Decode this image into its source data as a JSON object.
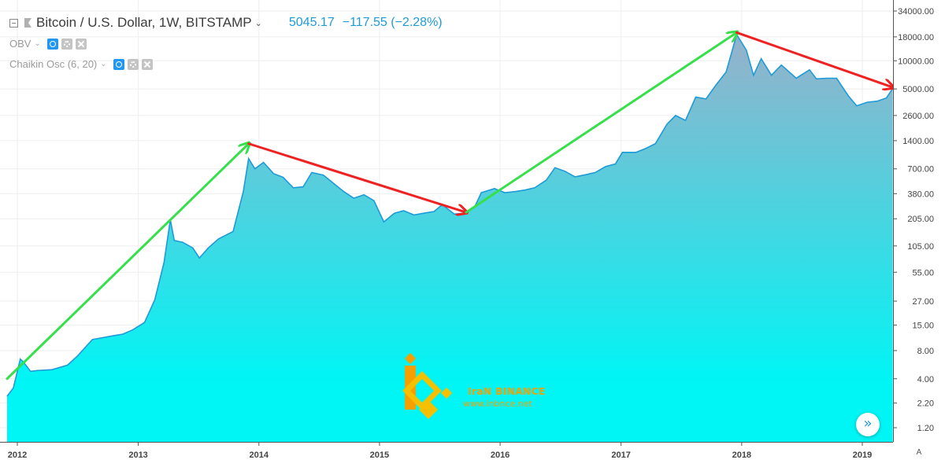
{
  "header": {
    "title": "Bitcoin / U.S. Dollar, 1W, BITSTAMP",
    "price": "5045.17",
    "change": "−117.55 (−2.28%)"
  },
  "indicators": [
    {
      "label": "OBV"
    },
    {
      "label": "Chaikin Osc (6, 20)"
    }
  ],
  "auto_label": "A",
  "watermark": {
    "brand": "IraN BINANCE",
    "url": "www.inbnce.net"
  },
  "colors": {
    "line": "#1e9bd7",
    "fill_top": "#8fb4cc",
    "fill_bottom": "#00f5f5",
    "up_arrow": "#35e04a",
    "down_arrow": "#ee2222",
    "brand": "#f5a000"
  },
  "chart_data": {
    "type": "area",
    "y_scale": "log",
    "y_ticks": [
      34000,
      18000,
      10000,
      5000,
      2600,
      1400,
      700,
      380,
      205,
      105,
      55,
      27,
      15,
      8,
      4,
      2.2,
      1.2
    ],
    "y_tick_labels": [
      "34000.00",
      "18000.00",
      "10000.00",
      "5000.00",
      "2600.00",
      "1400.00",
      "700.00",
      "380.00",
      "205.00",
      "105.00",
      "55.00",
      "27.00",
      "15.00",
      "8.00",
      "4.00",
      "2.20",
      "1.20"
    ],
    "x_ticks": [
      "2012",
      "2013",
      "2014",
      "2015",
      "2016",
      "2017",
      "2018",
      "2019"
    ],
    "ylim": [
      0.8,
      34000
    ],
    "grid": true,
    "series": [
      {
        "points": [
          [
            "2011-12-01",
            2.6
          ],
          [
            "2011-12-20",
            3.2
          ],
          [
            "2012-01-10",
            6.5
          ],
          [
            "2012-01-20",
            6.0
          ],
          [
            "2012-02-10",
            4.8
          ],
          [
            "2012-03-01",
            4.9
          ],
          [
            "2012-04-15",
            5.0
          ],
          [
            "2012-06-01",
            5.6
          ],
          [
            "2012-07-01",
            7.0
          ],
          [
            "2012-08-15",
            10.5
          ],
          [
            "2012-09-15",
            11.0
          ],
          [
            "2012-10-15",
            11.5
          ],
          [
            "2012-11-15",
            12.0
          ],
          [
            "2012-12-15",
            13.3
          ],
          [
            "2013-01-20",
            16.0
          ],
          [
            "2013-02-20",
            28.0
          ],
          [
            "2013-03-20",
            70.0
          ],
          [
            "2013-04-08",
            200.0
          ],
          [
            "2013-04-20",
            120.0
          ],
          [
            "2013-05-15",
            115.0
          ],
          [
            "2013-06-15",
            100.0
          ],
          [
            "2013-07-05",
            78.0
          ],
          [
            "2013-08-01",
            100.0
          ],
          [
            "2013-09-01",
            125.0
          ],
          [
            "2013-10-15",
            150.0
          ],
          [
            "2013-11-15",
            400.0
          ],
          [
            "2013-12-01",
            900.0
          ],
          [
            "2013-12-20",
            700.0
          ],
          [
            "2014-01-15",
            820.0
          ],
          [
            "2014-02-15",
            620.0
          ],
          [
            "2014-03-15",
            570.0
          ],
          [
            "2014-04-15",
            440.0
          ],
          [
            "2014-05-15",
            450.0
          ],
          [
            "2014-06-10",
            640.0
          ],
          [
            "2014-07-15",
            600.0
          ],
          [
            "2014-08-15",
            490.0
          ],
          [
            "2014-09-15",
            400.0
          ],
          [
            "2014-10-15",
            340.0
          ],
          [
            "2014-11-15",
            370.0
          ],
          [
            "2014-12-15",
            320.0
          ],
          [
            "2015-01-14",
            190.0
          ],
          [
            "2015-02-15",
            235.0
          ],
          [
            "2015-03-15",
            250.0
          ],
          [
            "2015-04-15",
            225.0
          ],
          [
            "2015-05-15",
            235.0
          ],
          [
            "2015-06-15",
            245.0
          ],
          [
            "2015-07-10",
            290.0
          ],
          [
            "2015-08-15",
            230.0
          ],
          [
            "2015-09-15",
            235.0
          ],
          [
            "2015-10-15",
            270.0
          ],
          [
            "2015-11-05",
            390.0
          ],
          [
            "2015-12-15",
            430.0
          ],
          [
            "2016-01-15",
            390.0
          ],
          [
            "2016-02-15",
            400.0
          ],
          [
            "2016-03-15",
            415.0
          ],
          [
            "2016-04-15",
            440.0
          ],
          [
            "2016-05-20",
            530.0
          ],
          [
            "2016-06-15",
            720.0
          ],
          [
            "2016-07-15",
            660.0
          ],
          [
            "2016-08-15",
            575.0
          ],
          [
            "2016-09-15",
            605.0
          ],
          [
            "2016-10-15",
            640.0
          ],
          [
            "2016-11-15",
            740.0
          ],
          [
            "2016-12-15",
            790.0
          ],
          [
            "2017-01-05",
            1050.0
          ],
          [
            "2017-02-15",
            1050.0
          ],
          [
            "2017-03-15",
            1150.0
          ],
          [
            "2017-04-15",
            1300.0
          ],
          [
            "2017-05-20",
            2100.0
          ],
          [
            "2017-06-15",
            2600.0
          ],
          [
            "2017-07-15",
            2300.0
          ],
          [
            "2017-08-15",
            4100.0
          ],
          [
            "2017-09-15",
            3900.0
          ],
          [
            "2017-10-15",
            5500.0
          ],
          [
            "2017-11-15",
            7600.0
          ],
          [
            "2017-12-17",
            19000.0
          ],
          [
            "2018-01-15",
            13000.0
          ],
          [
            "2018-02-06",
            7000.0
          ],
          [
            "2018-03-01",
            10500.0
          ],
          [
            "2018-04-01",
            7000.0
          ],
          [
            "2018-05-01",
            9000.0
          ],
          [
            "2018-06-15",
            6500.0
          ],
          [
            "2018-07-25",
            8000.0
          ],
          [
            "2018-08-15",
            6400.0
          ],
          [
            "2018-09-15",
            6500.0
          ],
          [
            "2018-10-15",
            6500.0
          ],
          [
            "2018-11-20",
            4200.0
          ],
          [
            "2018-12-15",
            3300.0
          ],
          [
            "2019-01-15",
            3600.0
          ],
          [
            "2019-02-15",
            3700.0
          ],
          [
            "2019-03-15",
            4000.0
          ],
          [
            "2019-04-03",
            5045.17
          ]
        ]
      }
    ],
    "annotations": [
      {
        "kind": "arrow",
        "color": "green",
        "from": [
          "2011-12-01",
          4.0
        ],
        "to": [
          "2013-12-01",
          1300.0
        ]
      },
      {
        "kind": "arrow",
        "color": "red",
        "from": [
          "2013-12-01",
          1300.0
        ],
        "to": [
          "2015-09-20",
          240.0
        ]
      },
      {
        "kind": "arrow",
        "color": "green",
        "from": [
          "2015-09-20",
          240.0
        ],
        "to": [
          "2017-12-17",
          20000.0
        ]
      },
      {
        "kind": "arrow",
        "color": "red",
        "from": [
          "2017-12-17",
          20000.0
        ],
        "to": [
          "2019-04-03",
          5200.0
        ]
      }
    ]
  }
}
